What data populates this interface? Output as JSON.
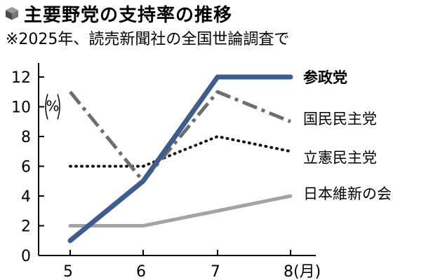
{
  "header": {
    "title": "主要野党の支持率の推移",
    "subtitle": "※2025年、読売新聞社の全国世論調査で",
    "icon": "cube-icon"
  },
  "chart_data": {
    "type": "line",
    "title": "主要野党の支持率の推移",
    "subtitle": "※2025年、読売新聞社の全国世論調査で",
    "x": [
      5,
      6,
      7,
      8
    ],
    "x_tick_labels": [
      "5",
      "6",
      "7",
      "8(月)"
    ],
    "ylabel": "%",
    "ylim": [
      0,
      12
    ],
    "y_ticks": [
      0,
      2,
      4,
      6,
      8,
      10,
      12
    ],
    "grid": false,
    "legend": "right, at line ends",
    "series": [
      {
        "name": "参政党",
        "values": [
          1,
          5,
          12,
          12
        ],
        "color": "#3d5d8f",
        "style": "solid-thick",
        "bold_label": true
      },
      {
        "name": "国民民主党",
        "values": [
          11,
          5,
          11,
          9
        ],
        "color": "#6e6e6e",
        "style": "dashdot"
      },
      {
        "name": "立憲民主党",
        "values": [
          6,
          6,
          8,
          7
        ],
        "color": "#111111",
        "style": "dotted"
      },
      {
        "name": "日本維新の会",
        "values": [
          2,
          2,
          3,
          4
        ],
        "color": "#a3a3a3",
        "style": "solid"
      }
    ]
  }
}
